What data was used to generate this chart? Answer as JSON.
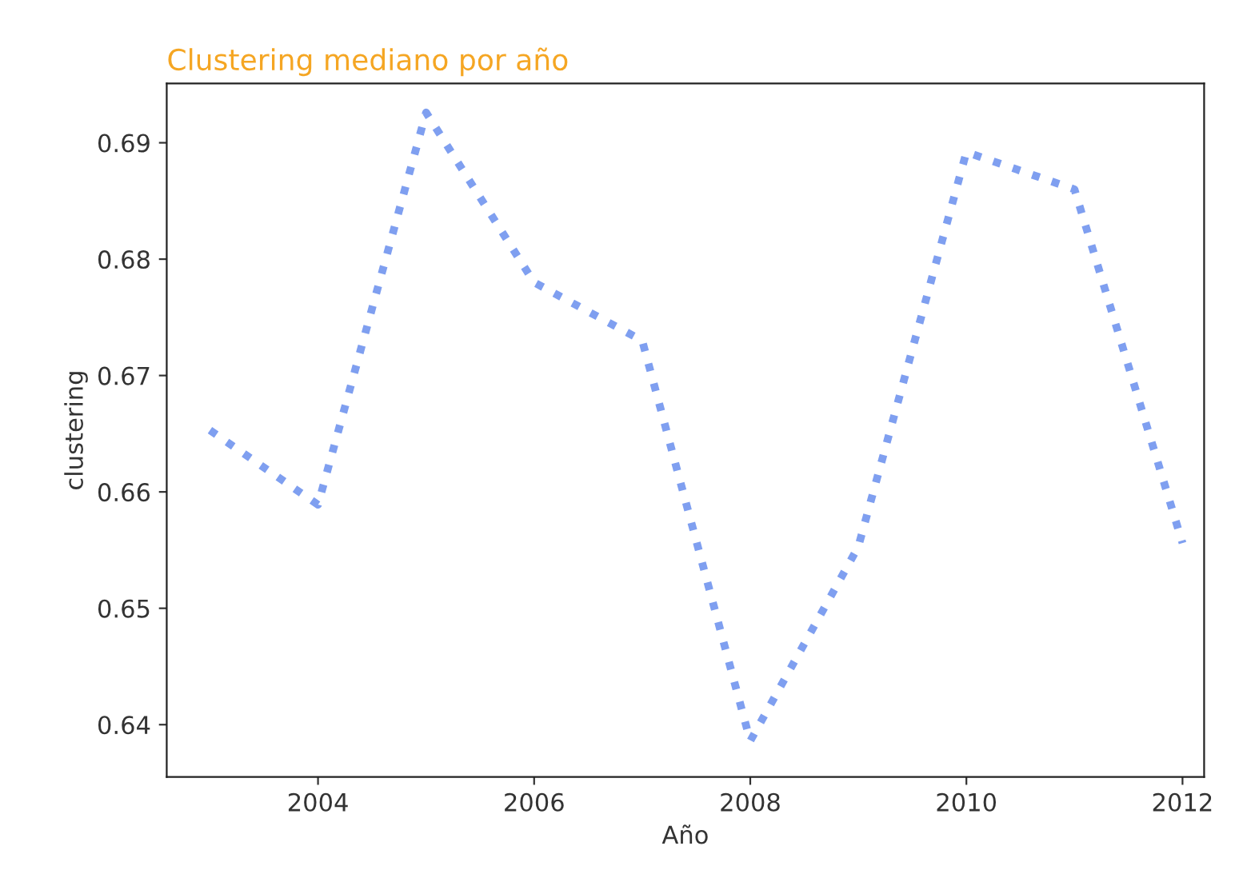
{
  "chart_data": {
    "type": "line",
    "title": "Clustering mediano por año",
    "xlabel": "Año",
    "ylabel": "clustering",
    "x": [
      2003,
      2004,
      2005,
      2006,
      2007,
      2008,
      2009,
      2010,
      2011,
      2012
    ],
    "series": [
      {
        "color": "#7f9ff0",
        "values": [
          0.6653,
          0.6589,
          0.6926,
          0.678,
          0.673,
          0.6386,
          0.6553,
          0.6892,
          0.686,
          0.6556
        ]
      }
    ],
    "xlim": [
      2002.6,
      2012.2
    ],
    "ylim": [
      0.6355,
      0.6951
    ],
    "xticks": [
      2004,
      2006,
      2008,
      2010,
      2012
    ],
    "yticks": [
      0.64,
      0.65,
      0.66,
      0.67,
      0.68,
      0.69
    ],
    "line_style": "dotted",
    "marker": "none",
    "grid": false
  }
}
